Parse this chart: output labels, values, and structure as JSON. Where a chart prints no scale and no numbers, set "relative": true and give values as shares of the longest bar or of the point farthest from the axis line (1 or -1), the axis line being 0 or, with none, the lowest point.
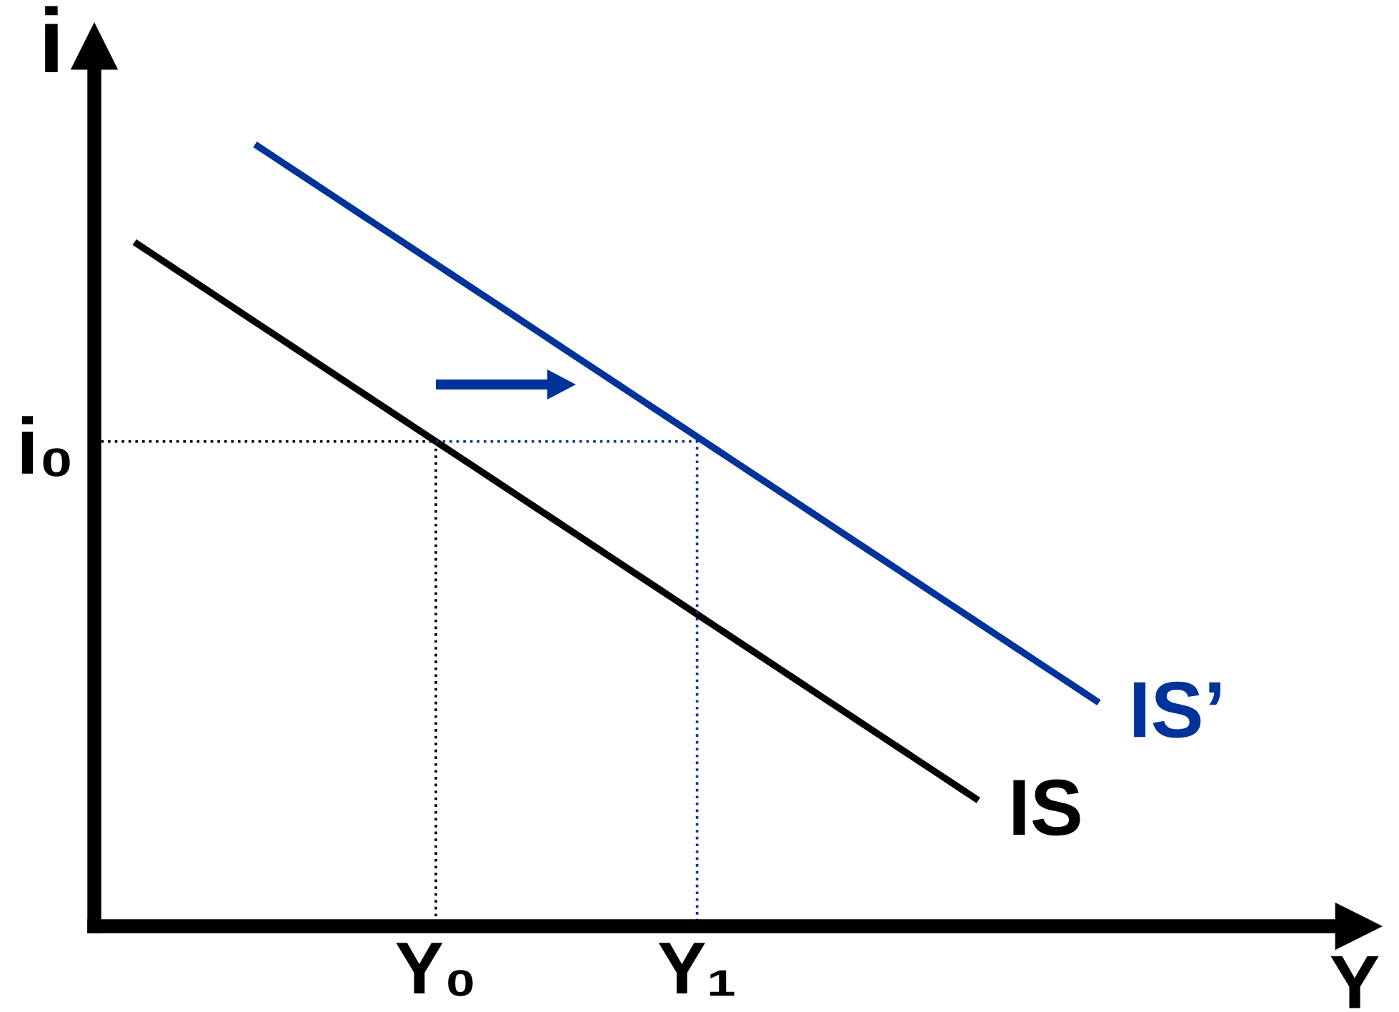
{
  "chart_data": {
    "type": "line",
    "relative": true,
    "xlabel": "Y",
    "ylabel": "i",
    "categories": [
      null,
      null,
      null,
      null,
      null,
      null,
      null,
      null,
      null,
      null,
      null,
      null,
      null,
      null,
      null,
      null,
      null,
      "Y₀",
      null,
      null,
      null,
      null,
      null,
      null,
      null,
      null,
      null,
      null,
      null,
      null,
      "Y₁",
      null,
      null,
      null,
      null,
      null,
      null,
      null,
      null,
      null,
      null,
      null,
      null,
      null,
      null,
      null,
      null,
      null,
      null,
      null,
      null
    ],
    "annotations": [
      "i₀"
    ],
    "marker": "none",
    "series": [
      {
        "name": "IS",
        "color": "#000000",
        "line_style": "solid",
        "values": [
          null,
          null,
          0.875,
          0.858,
          0.841,
          0.824,
          0.807,
          0.79,
          0.773,
          0.756,
          0.739,
          0.722,
          0.705,
          0.688,
          0.671,
          0.654,
          0.637,
          0.62,
          0.603,
          0.586,
          0.569,
          0.552,
          0.535,
          0.518,
          0.501,
          0.484,
          0.467,
          0.45,
          0.433,
          0.416,
          0.399,
          0.382,
          0.365,
          0.348,
          0.331,
          0.314,
          0.297,
          0.28,
          0.263,
          0.246,
          0.229,
          0.212,
          0.195,
          0.178,
          0.161,
          null,
          null,
          null,
          null,
          null,
          null
        ]
      },
      {
        "name": "IS’",
        "color": "#003399",
        "line_style": "solid",
        "values": [
          null,
          null,
          null,
          null,
          null,
          null,
          null,
          null,
          1.0,
          0.983,
          0.966,
          0.949,
          0.932,
          0.915,
          0.898,
          0.881,
          0.864,
          0.847,
          0.83,
          0.813,
          0.796,
          0.779,
          0.762,
          0.745,
          0.728,
          0.711,
          0.694,
          0.677,
          0.66,
          0.643,
          0.626,
          0.609,
          0.592,
          0.575,
          0.558,
          0.541,
          0.524,
          0.507,
          0.49,
          0.473,
          0.456,
          0.439,
          0.422,
          0.405,
          0.388,
          0.371,
          0.354,
          0.337,
          0.32,
          0.303,
          0.286
        ]
      },
      {
        "type": "step",
        "color": "#000000",
        "line_style": "dotted",
        "values": [
          0.62,
          0.62,
          0.62,
          0.62,
          0.62,
          0.62,
          0.62,
          0.62,
          0.62,
          0.62,
          0.62,
          0.62,
          0.62,
          0.62,
          0.62,
          0.62,
          0.62,
          0,
          null,
          null,
          null,
          null,
          null,
          null,
          null,
          null,
          null,
          null,
          null,
          null,
          null,
          null,
          null,
          null,
          null,
          null,
          null,
          null,
          null,
          null,
          null,
          null,
          null,
          null,
          null,
          null,
          null,
          null,
          null,
          null,
          null
        ]
      },
      {
        "type": "step",
        "color": "#003399",
        "line_style": "dotted",
        "values": [
          null,
          null,
          null,
          null,
          null,
          null,
          null,
          null,
          null,
          null,
          null,
          null,
          null,
          null,
          null,
          null,
          null,
          0.62,
          0.62,
          0.62,
          0.62,
          0.62,
          0.62,
          0.62,
          0.62,
          0.62,
          0.62,
          0.62,
          0.62,
          0.62,
          0,
          null,
          null,
          null,
          null,
          null,
          null,
          null,
          null,
          null,
          null,
          null,
          null,
          null,
          null,
          null,
          null,
          null,
          null,
          null,
          null
        ]
      }
    ]
  }
}
